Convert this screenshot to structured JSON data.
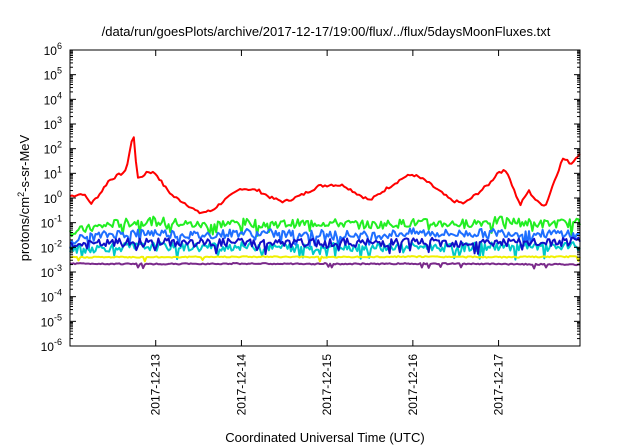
{
  "chart_data": {
    "type": "line",
    "title": "/data/run/goesPlots/archive/2017-12-17/19:00/flux/../flux/5daysMoonFluxes.txt",
    "xlabel": "Coordinated Universal Time (UTC)",
    "ylabel": "protons/cm2-s-sr-MeV",
    "y_scale": "log",
    "ylim": [
      1e-06,
      1000000.0
    ],
    "xlim": [
      0,
      5.95
    ],
    "y_ticks": [
      {
        "exp": "-6",
        "value": 1e-06
      },
      {
        "exp": "-5",
        "value": 1e-05
      },
      {
        "exp": "-4",
        "value": 0.0001
      },
      {
        "exp": "-3",
        "value": 0.001
      },
      {
        "exp": "-2",
        "value": 0.01
      },
      {
        "exp": "-1",
        "value": 0.1
      },
      {
        "exp": "0",
        "value": 1
      },
      {
        "exp": "1",
        "value": 10
      },
      {
        "exp": "2",
        "value": 100
      },
      {
        "exp": "3",
        "value": 1000
      },
      {
        "exp": "4",
        "value": 10000
      },
      {
        "exp": "5",
        "value": 100000
      },
      {
        "exp": "6",
        "value": 1000000
      }
    ],
    "x_ticks": [
      {
        "label": "2017-12-13",
        "value": 1.0
      },
      {
        "label": "2017-12-14",
        "value": 2.0
      },
      {
        "label": "2017-12-15",
        "value": 3.0
      },
      {
        "label": "2017-12-16",
        "value": 4.0
      },
      {
        "label": "2017-12-17",
        "value": 5.0
      }
    ],
    "grid": false,
    "legend": "none",
    "series": [
      {
        "color": "#ff0000",
        "style": "smooth",
        "x": [
          0,
          0.15,
          0.25,
          0.35,
          0.45,
          0.55,
          0.65,
          0.72,
          0.75,
          0.78,
          0.82,
          0.9,
          1.0,
          1.1,
          1.2,
          1.35,
          1.5,
          1.65,
          1.8,
          2.0,
          2.2,
          2.35,
          2.5,
          2.7,
          2.9,
          3.05,
          3.2,
          3.35,
          3.5,
          3.7,
          3.9,
          4.0,
          4.15,
          4.3,
          4.45,
          4.6,
          4.75,
          4.9,
          5.0,
          5.1,
          5.15,
          5.25,
          5.35,
          5.45,
          5.55,
          5.65,
          5.75,
          5.85,
          5.95
        ],
        "values": [
          1.2,
          1.5,
          0.6,
          1.5,
          5,
          8,
          12,
          200,
          300,
          8,
          6,
          12,
          10,
          3,
          1.2,
          0.6,
          0.25,
          0.3,
          0.8,
          2.5,
          2,
          1.0,
          0.7,
          1.3,
          3,
          3.5,
          3.2,
          1.5,
          0.8,
          2.5,
          7,
          9,
          5,
          2,
          0.8,
          0.6,
          1.5,
          4,
          12,
          12,
          4,
          0.5,
          2,
          0.7,
          0.5,
          5,
          40,
          25,
          70
        ]
      },
      {
        "color": "#22ee22",
        "style": "noisy",
        "x": [
          0,
          0.5,
          1.0,
          1.5,
          2.0,
          2.5,
          3.0,
          3.5,
          4.0,
          4.5,
          5.0,
          5.5,
          5.95
        ],
        "values": [
          0.04,
          0.09,
          0.12,
          0.08,
          0.1,
          0.09,
          0.1,
          0.08,
          0.1,
          0.09,
          0.12,
          0.09,
          0.1
        ]
      },
      {
        "color": "#1f6fff",
        "style": "noisy",
        "x": [
          0,
          0.5,
          1.0,
          1.5,
          2.0,
          2.5,
          3.0,
          3.5,
          4.0,
          4.5,
          5.0,
          5.5,
          5.95
        ],
        "values": [
          0.02,
          0.035,
          0.04,
          0.03,
          0.04,
          0.035,
          0.035,
          0.03,
          0.04,
          0.035,
          0.04,
          0.035,
          0.04
        ]
      },
      {
        "color": "#00c8c8",
        "style": "noisy",
        "x": [
          0,
          0.5,
          1.0,
          1.5,
          2.0,
          2.5,
          3.0,
          3.5,
          4.0,
          4.5,
          5.0,
          5.5,
          5.95
        ],
        "values": [
          0.008,
          0.01,
          0.011,
          0.01,
          0.011,
          0.01,
          0.011,
          0.01,
          0.011,
          0.01,
          0.011,
          0.01,
          0.011
        ]
      },
      {
        "color": "#1010c8",
        "style": "noisy",
        "x": [
          0,
          0.5,
          1.0,
          1.5,
          2.0,
          2.5,
          3.0,
          3.5,
          4.0,
          4.5,
          5.0,
          5.5,
          5.95
        ],
        "values": [
          0.012,
          0.015,
          0.016,
          0.015,
          0.016,
          0.014,
          0.016,
          0.015,
          0.017,
          0.015,
          0.016,
          0.015,
          0.017
        ]
      },
      {
        "color": "#f0f000",
        "style": "flat",
        "x": [
          0,
          1.0,
          2.0,
          3.0,
          4.0,
          5.0,
          5.95
        ],
        "values": [
          0.004,
          0.004,
          0.0042,
          0.004,
          0.0042,
          0.004,
          0.0042
        ]
      },
      {
        "color": "#7a2a8a",
        "style": "flat",
        "x": [
          0,
          1.0,
          2.0,
          2.8,
          3.0,
          3.2,
          4.0,
          5.0,
          5.95
        ],
        "values": [
          0.0022,
          0.0021,
          0.0022,
          0.0021,
          0.0022,
          0.0021,
          0.0022,
          0.0021,
          0.002
        ]
      }
    ]
  }
}
